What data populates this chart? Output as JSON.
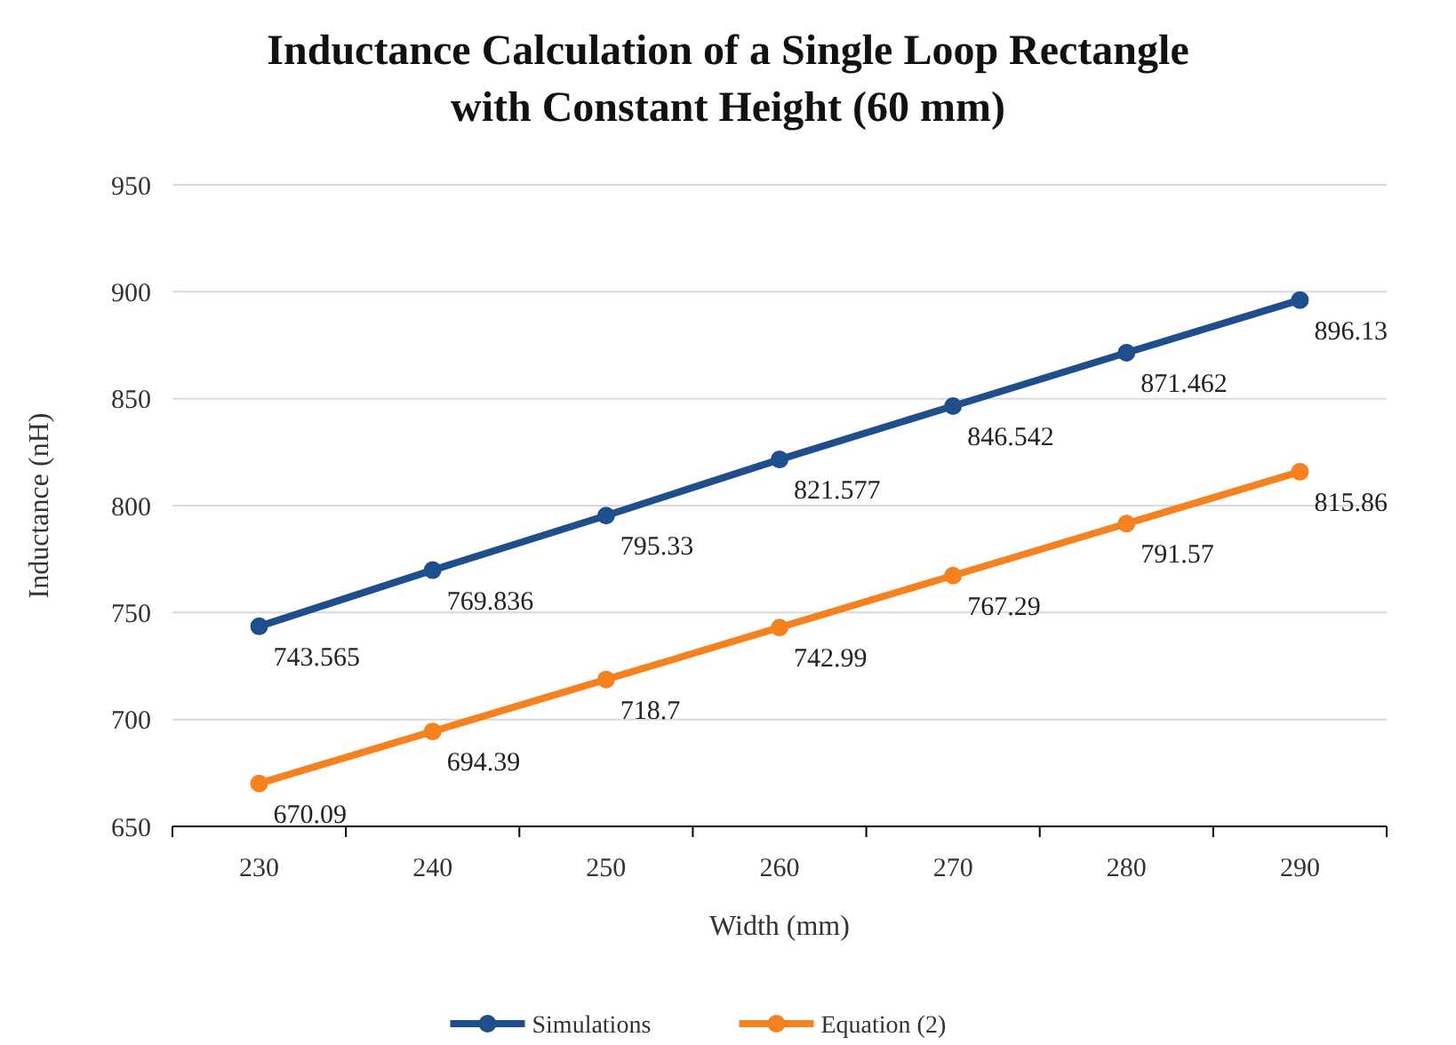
{
  "chart_data": {
    "type": "line",
    "title": "Inductance Calculation of a Single Loop Rectangle with Constant Height (60 mm)",
    "xlabel": "Width (mm)",
    "ylabel": "Inductance (nH)",
    "categories": [
      "230",
      "240",
      "250",
      "260",
      "270",
      "280",
      "290"
    ],
    "series": [
      {
        "name": "Simulations",
        "color": "#1f4e8c",
        "values": [
          743.565,
          769.836,
          795.33,
          821.577,
          846.542,
          871.462,
          896.13
        ]
      },
      {
        "name": "Equation (2)",
        "color": "#f5821f",
        "values": [
          670.09,
          694.39,
          718.7,
          742.99,
          767.29,
          791.57,
          815.86
        ]
      }
    ],
    "ylim": [
      650,
      950
    ],
    "yticks": [
      650,
      700,
      750,
      800,
      850,
      900,
      950
    ],
    "grid": "y",
    "legend": "bottom",
    "marker": "circle",
    "line_style": "solid",
    "data_labels": true
  }
}
